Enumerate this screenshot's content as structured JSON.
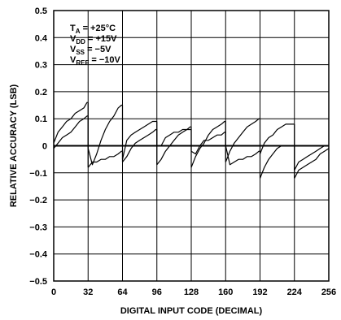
{
  "chart_data": {
    "type": "line",
    "title": "",
    "xlabel": "DIGITAL INPUT CODE (DECIMAL)",
    "ylabel": "RELATIVE ACCURACY (LSB)",
    "xlim": [
      0,
      256
    ],
    "ylim": [
      -0.5,
      0.5
    ],
    "x_ticks": [
      0,
      32,
      64,
      96,
      128,
      160,
      192,
      224,
      256
    ],
    "y_ticks": [
      0.5,
      0.4,
      0.3,
      0.2,
      0.1,
      0,
      -0.1,
      -0.2,
      -0.3,
      -0.4,
      -0.5
    ],
    "x_tick_labels": [
      "0",
      "32",
      "64",
      "96",
      "128",
      "160",
      "192",
      "224",
      "256"
    ],
    "y_tick_labels": [
      "0.5",
      "0.4",
      "0.3",
      "0.2",
      "0.1",
      "0",
      "−0.1",
      "−0.2",
      "−0.3",
      "−0.4",
      "−0.5"
    ],
    "grid": true,
    "annotations": [
      {
        "main": "T",
        "sub": "A",
        "rest": " = +25°C"
      },
      {
        "main": "V",
        "sub": "DD",
        "rest": " = +15V"
      },
      {
        "main": "V",
        "sub": "SS",
        "rest": " = −5V"
      },
      {
        "main": "V",
        "sub": "REF",
        "rest": " = −10V"
      }
    ],
    "series": [
      {
        "values": [
          [
            0,
            0.01
          ],
          [
            4,
            0.05
          ],
          [
            8,
            0.07
          ],
          [
            12,
            0.09
          ],
          [
            16,
            0.1
          ],
          [
            20,
            0.12
          ],
          [
            24,
            0.13
          ],
          [
            28,
            0.14
          ],
          [
            31,
            0.16
          ],
          [
            32,
            -0.08
          ],
          [
            36,
            -0.06
          ],
          [
            40,
            -0.06
          ],
          [
            44,
            -0.05
          ],
          [
            48,
            -0.05
          ],
          [
            52,
            -0.04
          ],
          [
            56,
            -0.04
          ],
          [
            60,
            -0.03
          ],
          [
            63,
            -0.02
          ],
          [
            64,
            -0.05
          ],
          [
            68,
            0.02
          ],
          [
            72,
            0.04
          ],
          [
            76,
            0.05
          ],
          [
            80,
            0.06
          ],
          [
            84,
            0.07
          ],
          [
            88,
            0.08
          ],
          [
            92,
            0.09
          ],
          [
            95,
            0.09
          ],
          [
            96,
            -0.07
          ],
          [
            100,
            -0.05
          ],
          [
            104,
            -0.02
          ],
          [
            108,
            0.0
          ],
          [
            112,
            0.02
          ],
          [
            116,
            0.04
          ],
          [
            120,
            0.05
          ],
          [
            124,
            0.06
          ],
          [
            127,
            0.07
          ],
          [
            128,
            -0.08
          ],
          [
            132,
            -0.04
          ],
          [
            136,
            -0.01
          ],
          [
            140,
            0.01
          ],
          [
            144,
            0.04
          ],
          [
            148,
            0.06
          ],
          [
            152,
            0.07
          ],
          [
            156,
            0.08
          ],
          [
            159,
            0.09
          ],
          [
            160,
            -0.06
          ],
          [
            164,
            -0.02
          ],
          [
            168,
            0.01
          ],
          [
            172,
            0.03
          ],
          [
            176,
            0.05
          ],
          [
            180,
            0.07
          ],
          [
            184,
            0.08
          ],
          [
            188,
            0.09
          ],
          [
            191,
            0.1
          ],
          [
            192,
            -0.03
          ],
          [
            196,
            0.01
          ],
          [
            200,
            0.03
          ],
          [
            204,
            0.04
          ],
          [
            208,
            0.06
          ],
          [
            212,
            0.07
          ],
          [
            216,
            0.08
          ],
          [
            220,
            0.08
          ],
          [
            223,
            0.08
          ],
          [
            224,
            -0.09
          ],
          [
            228,
            -0.06
          ],
          [
            232,
            -0.05
          ],
          [
            236,
            -0.04
          ],
          [
            240,
            -0.03
          ],
          [
            244,
            -0.02
          ],
          [
            248,
            -0.01
          ],
          [
            252,
            0.0
          ],
          [
            256,
            0.0
          ]
        ]
      },
      {
        "values": [
          [
            0,
            -0.01
          ],
          [
            4,
            0.01
          ],
          [
            8,
            0.03
          ],
          [
            12,
            0.04
          ],
          [
            16,
            0.05
          ],
          [
            20,
            0.07
          ],
          [
            24,
            0.09
          ],
          [
            28,
            0.1
          ],
          [
            31,
            0.11
          ],
          [
            32,
            -0.01
          ],
          [
            36,
            -0.07
          ],
          [
            40,
            -0.03
          ],
          [
            44,
            0.02
          ],
          [
            48,
            0.06
          ],
          [
            52,
            0.09
          ],
          [
            56,
            0.11
          ],
          [
            60,
            0.14
          ],
          [
            63,
            0.15
          ],
          [
            64,
            -0.06
          ],
          [
            68,
            -0.04
          ],
          [
            72,
            -0.01
          ],
          [
            76,
            0.01
          ],
          [
            80,
            0.02
          ],
          [
            84,
            0.03
          ],
          [
            88,
            0.04
          ],
          [
            92,
            0.05
          ],
          [
            95,
            0.06
          ],
          [
            96,
            0.0
          ],
          [
            100,
            0.0
          ],
          [
            104,
            0.03
          ],
          [
            108,
            0.04
          ],
          [
            112,
            0.05
          ],
          [
            116,
            0.05
          ],
          [
            120,
            0.06
          ],
          [
            124,
            0.06
          ],
          [
            127,
            0.06
          ],
          [
            128,
            -0.02
          ],
          [
            132,
            -0.03
          ],
          [
            136,
            0.0
          ],
          [
            140,
            0.02
          ],
          [
            144,
            0.02
          ],
          [
            148,
            0.03
          ],
          [
            152,
            0.04
          ],
          [
            156,
            0.04
          ],
          [
            159,
            0.05
          ],
          [
            160,
            0.0
          ],
          [
            164,
            -0.07
          ],
          [
            168,
            -0.06
          ],
          [
            172,
            -0.05
          ],
          [
            176,
            -0.05
          ],
          [
            180,
            -0.04
          ],
          [
            184,
            -0.04
          ],
          [
            188,
            -0.03
          ],
          [
            191,
            -0.02
          ],
          [
            192,
            -0.12
          ],
          [
            196,
            -0.08
          ],
          [
            200,
            -0.05
          ],
          [
            204,
            -0.03
          ],
          [
            208,
            -0.01
          ],
          [
            212,
            0.0
          ],
          [
            216,
            0.0
          ],
          [
            220,
            0.0
          ],
          [
            223,
            0.0
          ],
          [
            224,
            -0.12
          ],
          [
            228,
            -0.09
          ],
          [
            232,
            -0.08
          ],
          [
            236,
            -0.07
          ],
          [
            240,
            -0.06
          ],
          [
            244,
            -0.05
          ],
          [
            248,
            -0.03
          ],
          [
            252,
            -0.02
          ],
          [
            256,
            -0.01
          ]
        ]
      }
    ]
  }
}
